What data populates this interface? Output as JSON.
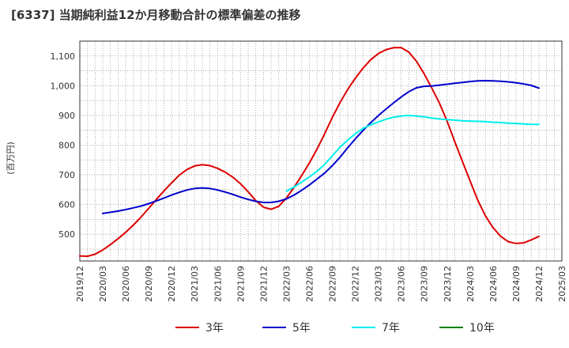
{
  "title": "[6337]  当期純利益12か月移動合計の標準偏差の推移",
  "chart_data": {
    "type": "line",
    "title": "[6337]  当期純利益12か月移動合計の標準偏差の推移",
    "ylabel": "(百万円)",
    "xlabel": "",
    "x_ticks": [
      "2019/12",
      "2020/03",
      "2020/06",
      "2020/09",
      "2020/12",
      "2021/03",
      "2021/06",
      "2021/09",
      "2021/12",
      "2022/03",
      "2022/06",
      "2022/09",
      "2022/12",
      "2023/03",
      "2023/06",
      "2023/09",
      "2023/12",
      "2024/03",
      "2024/06",
      "2024/09",
      "2024/12",
      "2025/03"
    ],
    "y_ticks": [
      500,
      600,
      700,
      800,
      900,
      1000,
      1100
    ],
    "y_tick_labels": [
      "500",
      "600",
      "700",
      "800",
      "900",
      "1,000",
      "1,100"
    ],
    "ylim": [
      410,
      1150
    ],
    "grid": true,
    "legend_position": "bottom",
    "series": [
      {
        "name": "3年",
        "color": "#dd0000",
        "x": [
          "2019/12",
          "2020/01",
          "2020/02",
          "2020/03",
          "2020/04",
          "2020/05",
          "2020/06",
          "2020/07",
          "2020/08",
          "2020/09",
          "2020/10",
          "2020/11",
          "2020/12",
          "2021/01",
          "2021/02",
          "2021/03",
          "2021/04",
          "2021/05",
          "2021/06",
          "2021/07",
          "2021/08",
          "2021/09",
          "2021/10",
          "2021/11",
          "2021/12",
          "2022/01",
          "2022/02",
          "2022/03",
          "2022/04",
          "2022/05",
          "2022/06",
          "2022/07",
          "2022/08",
          "2022/09",
          "2022/10",
          "2022/11",
          "2022/12",
          "2023/01",
          "2023/02",
          "2023/03",
          "2023/04",
          "2023/05",
          "2023/06",
          "2023/07",
          "2023/08",
          "2023/09",
          "2023/10",
          "2023/11",
          "2023/12",
          "2024/01",
          "2024/02",
          "2024/03",
          "2024/04",
          "2024/05",
          "2024/06",
          "2024/07",
          "2024/08",
          "2024/09",
          "2024/10",
          "2024/11",
          "2024/12"
        ],
        "values": [
          427,
          426,
          433,
          447,
          465,
          485,
          507,
          531,
          558,
          587,
          617,
          646,
          673,
          699,
          718,
          730,
          734,
          731,
          722,
          709,
          692,
          670,
          643,
          613,
          591,
          584,
          594,
          622,
          658,
          698,
          740,
          787,
          838,
          893,
          943,
          987,
          1025,
          1059,
          1087,
          1108,
          1121,
          1128,
          1128,
          1113,
          1082,
          1040,
          992,
          941,
          880,
          812,
          745,
          680,
          615,
          562,
          522,
          493,
          475,
          469,
          471,
          481,
          493
        ]
      },
      {
        "name": "5年",
        "color": "#0000cc",
        "x": [
          "2020/03",
          "2020/04",
          "2020/05",
          "2020/06",
          "2020/07",
          "2020/08",
          "2020/09",
          "2020/10",
          "2020/11",
          "2020/12",
          "2021/01",
          "2021/02",
          "2021/03",
          "2021/04",
          "2021/05",
          "2021/06",
          "2021/07",
          "2021/08",
          "2021/09",
          "2021/10",
          "2021/11",
          "2021/12",
          "2022/01",
          "2022/02",
          "2022/03",
          "2022/04",
          "2022/05",
          "2022/06",
          "2022/07",
          "2022/08",
          "2022/09",
          "2022/10",
          "2022/11",
          "2022/12",
          "2023/01",
          "2023/02",
          "2023/03",
          "2023/04",
          "2023/05",
          "2023/06",
          "2023/07",
          "2023/08",
          "2023/09",
          "2023/10",
          "2023/11",
          "2023/12",
          "2024/01",
          "2024/02",
          "2024/03",
          "2024/04",
          "2024/05",
          "2024/06",
          "2024/07",
          "2024/08",
          "2024/09",
          "2024/10",
          "2024/11",
          "2024/12"
        ],
        "values": [
          570,
          574,
          578,
          583,
          589,
          595,
          603,
          612,
          622,
          632,
          641,
          649,
          654,
          656,
          654,
          649,
          642,
          634,
          625,
          617,
          611,
          607,
          607,
          611,
          619,
          632,
          648,
          666,
          686,
          706,
          731,
          759,
          791,
          821,
          849,
          875,
          899,
          921,
          942,
          962,
          980,
          993,
          998,
          999,
          1002,
          1005,
          1008,
          1011,
          1014,
          1016,
          1017,
          1016,
          1015,
          1013,
          1010,
          1006,
          1001,
          992
        ]
      },
      {
        "name": "7年",
        "color": "#00eeee",
        "x": [
          "2022/03",
          "2022/04",
          "2022/05",
          "2022/06",
          "2022/07",
          "2022/08",
          "2022/09",
          "2022/10",
          "2022/11",
          "2022/12",
          "2023/01",
          "2023/02",
          "2023/03",
          "2023/04",
          "2023/05",
          "2023/06",
          "2023/07",
          "2023/08",
          "2023/09",
          "2023/10",
          "2023/11",
          "2023/12",
          "2024/01",
          "2024/02",
          "2024/03",
          "2024/04",
          "2024/05",
          "2024/06",
          "2024/07",
          "2024/08",
          "2024/09",
          "2024/10",
          "2024/11",
          "2024/12"
        ],
        "values": [
          645,
          659,
          676,
          693,
          712,
          735,
          764,
          793,
          817,
          838,
          856,
          868,
          878,
          887,
          894,
          898,
          900,
          898,
          895,
          891,
          888,
          886,
          884,
          882,
          881,
          880,
          879,
          877,
          876,
          874,
          873,
          871,
          870,
          870
        ]
      },
      {
        "name": "10年",
        "color": "#008000",
        "x": [],
        "values": []
      }
    ]
  }
}
